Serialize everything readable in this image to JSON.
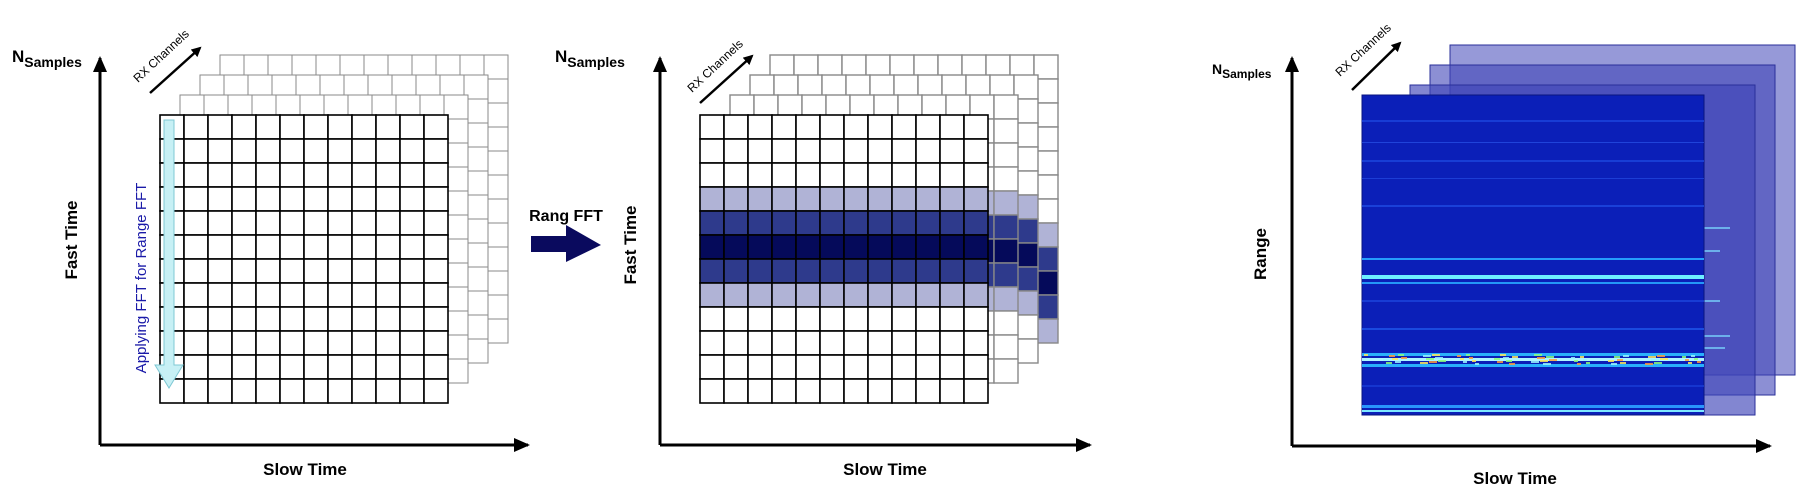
{
  "panel1": {
    "ylabel_main": "N",
    "ylabel_sub": "Samples",
    "axis_fast": "Fast Time",
    "axis_slow": "Slow Time",
    "rx_channels": "RX Channels",
    "fft_note": "Applying FFT  for Range FFT"
  },
  "arrow": {
    "label": "Rang FFT"
  },
  "panel2": {
    "ylabel_main": "N",
    "ylabel_sub": "Samples",
    "axis_fast": "Fast Time",
    "axis_slow": "Slow Time",
    "rx_channels": "RX Channels"
  },
  "panel3": {
    "ylabel_main": "N",
    "ylabel_sub": "Samples",
    "axis_range": "Range",
    "axis_slow": "Slow Time",
    "rx_channels": "RX Channels"
  },
  "colors": {
    "axis": "#000000",
    "fft_arrow": "#c7f0f5",
    "fft_text": "#1a1aa8",
    "band_light": "#b0b3d6",
    "band_mid": "#2e3a8c",
    "band_dark": "#050a5a",
    "big_arrow": "#0a0a5e",
    "spectro_bg": "#0b1fb8"
  }
}
